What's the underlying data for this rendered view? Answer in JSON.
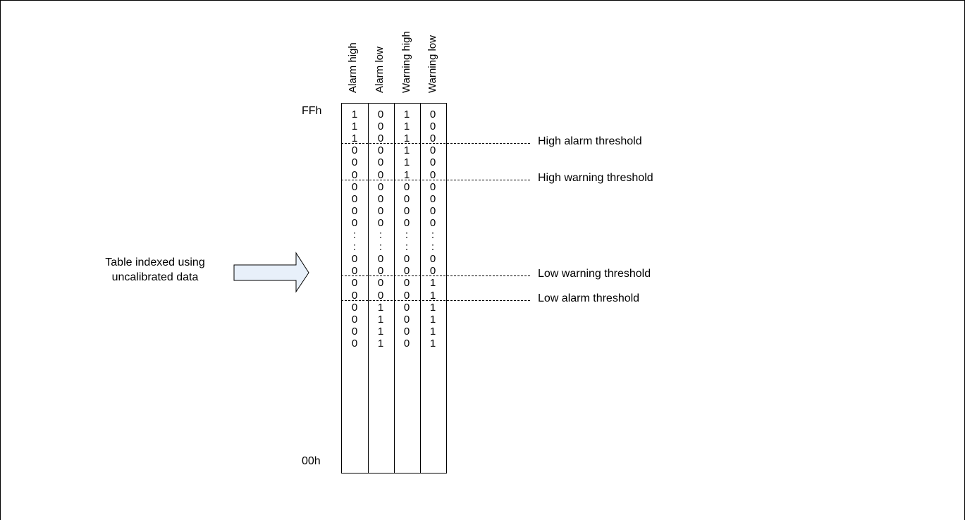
{
  "columns": [
    "Alarm high",
    "Alarm low",
    "Warning high",
    "Warning low"
  ],
  "address_top": "FFh",
  "address_bottom": "00h",
  "index_label_lines": [
    "Table indexed using",
    "uncalibrated data"
  ],
  "rows": [
    [
      "1",
      "0",
      "1",
      "0"
    ],
    [
      "1",
      "0",
      "1",
      "0"
    ],
    [
      "1",
      "0",
      "1",
      "0"
    ],
    [
      "0",
      "0",
      "1",
      "0"
    ],
    [
      "0",
      "0",
      "1",
      "0"
    ],
    [
      "0",
      "0",
      "1",
      "0"
    ],
    [
      "0",
      "0",
      "0",
      "0"
    ],
    [
      "0",
      "0",
      "0",
      "0"
    ],
    [
      "0",
      "0",
      "0",
      "0"
    ],
    [
      "0",
      "0",
      "0",
      "0"
    ],
    [
      ":",
      ":",
      ":",
      ":"
    ],
    [
      ":",
      ":",
      ":",
      ":"
    ],
    [
      "0",
      "0",
      "0",
      "0"
    ],
    [
      "0",
      "0",
      "0",
      "0"
    ],
    [
      "0",
      "0",
      "0",
      "1"
    ],
    [
      "0",
      "0",
      "0",
      "1"
    ],
    [
      "0",
      "1",
      "0",
      "1"
    ],
    [
      "0",
      "1",
      "0",
      "1"
    ],
    [
      "0",
      "1",
      "0",
      "1"
    ],
    [
      "0",
      "1",
      "0",
      "1"
    ]
  ],
  "thresholds": [
    {
      "label": "High alarm threshold",
      "after_row": 3
    },
    {
      "label": "High warning threshold",
      "after_row": 6
    },
    {
      "label": "Low warning threshold",
      "after_row": 14
    },
    {
      "label": "Low alarm threshold",
      "after_row": 16
    }
  ],
  "colors": {
    "arrow_fill": "#e8f0fa",
    "line": "#000000"
  }
}
